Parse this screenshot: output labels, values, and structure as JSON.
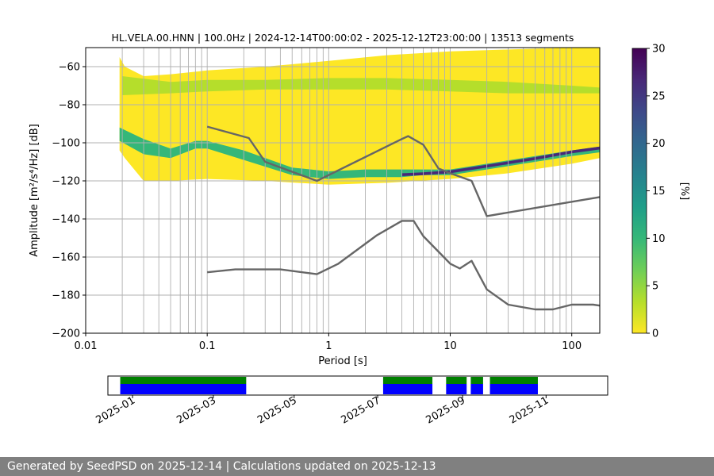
{
  "title": "HL.VELA.00.HNN | 100.0Hz | 2024-12-14T00:00:02 - 2025-12-12T23:00:00 | 13513 segments",
  "footer": "Generated by SeedPSD on 2025-12-14 | Calculations updated on 2025-12-13",
  "colors": {
    "curve": "#666666",
    "grid": "#b0b0b0",
    "availability_green": "#008000",
    "availability_blue": "#0000ff",
    "colormap": [
      "#fde725",
      "#b5de2b",
      "#6ece58",
      "#35b779",
      "#1f9e89",
      "#26828e",
      "#31688e",
      "#3e4989",
      "#482878",
      "#440154"
    ]
  },
  "chart_data": [
    {
      "type": "heatmap",
      "title": "HL.VELA.00.HNN | 100.0Hz | 2024-12-14T00:00:02 - 2025-12-12T23:00:00 | 13513 segments",
      "xlabel": "Period [s]",
      "ylabel": "Amplitude [m²/s⁴/Hz] [dB]",
      "x_scale": "log",
      "xlim": [
        0.01,
        170
      ],
      "ylim": [
        -200,
        -50
      ],
      "x_ticks": [
        0.01,
        0.1,
        1,
        10,
        100
      ],
      "x_tick_labels": [
        "0.01",
        "0.1",
        "1",
        "10",
        "100"
      ],
      "y_ticks": [
        -60,
        -80,
        -100,
        -120,
        -140,
        -160,
        -180,
        -200
      ],
      "y_tick_labels": [
        "−60",
        "−80",
        "−100",
        "−120",
        "−140",
        "−160",
        "−180",
        "−200"
      ],
      "grid": true,
      "grid_x_periods": [
        0.02,
        0.03,
        0.04,
        0.05,
        0.06,
        0.07,
        0.08,
        0.09,
        0.1,
        0.2,
        0.3,
        0.4,
        0.5,
        0.6,
        0.7,
        0.8,
        0.9,
        1,
        2,
        3,
        4,
        5,
        6,
        7,
        8,
        9,
        10,
        20,
        30,
        40,
        50,
        60,
        70,
        80,
        90,
        100
      ],
      "colorbar": {
        "label": "[%]",
        "range": [
          0,
          30
        ],
        "ticks": [
          0,
          5,
          10,
          15,
          20,
          25,
          30
        ]
      },
      "psd_bands": [
        {
          "name": "coverage",
          "x": [
            0.019,
            0.021,
            0.03,
            0.05,
            0.1,
            0.3,
            1,
            3,
            10,
            30,
            100,
            170
          ],
          "upper": [
            -55,
            -60,
            -65,
            -64,
            -62,
            -60,
            -57,
            -54,
            -52,
            -51,
            -50,
            -50
          ],
          "lower": [
            -104,
            -108,
            -120,
            -120,
            -119,
            -120,
            -122,
            -121,
            -119,
            -116,
            -111,
            -108
          ],
          "percent": 1.5
        },
        {
          "name": "upper-mode",
          "x": [
            0.02,
            0.05,
            0.1,
            0.3,
            1,
            3,
            10,
            30,
            100,
            170
          ],
          "upper": [
            -65,
            -68,
            -67,
            -67,
            -66,
            -66,
            -67,
            -68,
            -70,
            -71
          ],
          "lower": [
            -75,
            -74,
            -73,
            -72,
            -72,
            -72,
            -73,
            -74,
            -74,
            -74
          ],
          "percent": 4
        },
        {
          "name": "lower-mode",
          "x": [
            0.019,
            0.03,
            0.05,
            0.08,
            0.1,
            0.2,
            0.5,
            1,
            2,
            4,
            6,
            10,
            20,
            50,
            100,
            170
          ],
          "upper": [
            -92,
            -98,
            -103,
            -99,
            -99,
            -104,
            -113,
            -115,
            -114,
            -114,
            -114,
            -114,
            -111,
            -107,
            -104,
            -102
          ],
          "lower": [
            -99,
            -106,
            -108,
            -103,
            -103,
            -109,
            -117,
            -119,
            -118,
            -118,
            -117,
            -117,
            -114,
            -110,
            -107,
            -105
          ],
          "percent": 9
        },
        {
          "name": "dominant-mode",
          "x": [
            4,
            6,
            10,
            20,
            50,
            100,
            170
          ],
          "upper": [
            -116,
            -115.5,
            -114.5,
            -111.5,
            -107.5,
            -104,
            -102
          ],
          "lower": [
            -117.5,
            -117,
            -116,
            -113,
            -109,
            -105.5,
            -103.5
          ],
          "percent": 26
        }
      ],
      "series": [
        {
          "name": "",
          "x": [
            0.1,
            0.22,
            0.3,
            0.8,
            4,
            4.5,
            6,
            8,
            10,
            15,
            20,
            170
          ],
          "y": [
            -91.5,
            -97.5,
            -110,
            -120,
            -98,
            -96.5,
            -101,
            -113.5,
            -116,
            -120,
            -138.5,
            -128.5
          ]
        },
        {
          "name": "",
          "x": [
            0.1,
            0.17,
            0.2,
            0.4,
            0.8,
            1.2,
            2.5,
            4,
            5,
            6,
            10,
            12,
            15,
            20,
            30,
            50,
            70,
            100,
            150,
            170
          ],
          "y": [
            -168,
            -166.5,
            -166.5,
            -166.5,
            -169,
            -163.5,
            -148.5,
            -141,
            -141,
            -149,
            -163.5,
            -166,
            -162,
            -177,
            -185,
            -187.5,
            -187.5,
            -185,
            -185,
            -185.5
          ]
        }
      ]
    },
    {
      "type": "availability",
      "xlabel": "",
      "tick_labels": [
        "2025-01",
        "2025-03",
        "2025-05",
        "2025-07",
        "2025-09",
        "2025-11"
      ],
      "tick_days": [
        18,
        77,
        136,
        197,
        259,
        320
      ],
      "range_days": [
        0,
        365
      ],
      "segments_days": [
        [
          9,
          101
        ],
        [
          201,
          237
        ],
        [
          247,
          262
        ],
        [
          265,
          274
        ],
        [
          279,
          314
        ]
      ]
    }
  ]
}
